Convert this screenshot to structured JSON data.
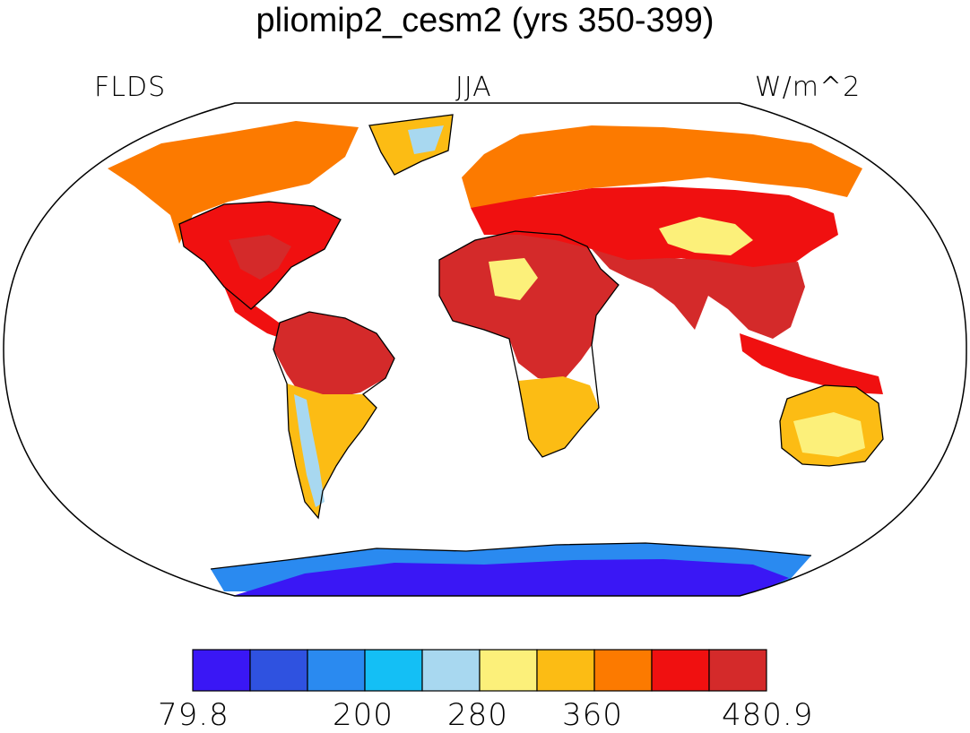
{
  "title": "pliomip2_cesm2 (yrs 350-399)",
  "variable": "FLDS",
  "season": "JJA",
  "units": "W/m^2",
  "colorbar": {
    "colors": [
      "#3a17f5",
      "#2f52e0",
      "#2a8af0",
      "#14bff5",
      "#a8d8f0",
      "#fcf07a",
      "#fcbc14",
      "#fc7a00",
      "#f01010",
      "#d42a2a"
    ],
    "tick_labels": [
      "79.8",
      "200",
      "280",
      "360",
      "480.9"
    ]
  },
  "regions": [
    {
      "name": "north-america-arctic",
      "level": 7
    },
    {
      "name": "north-america-east",
      "level": 8
    },
    {
      "name": "north-america-southeast",
      "level": 9
    },
    {
      "name": "greenland",
      "level": 6
    },
    {
      "name": "greenland-interior",
      "level": 4
    },
    {
      "name": "central-america",
      "level": 8
    },
    {
      "name": "south-america-north",
      "level": 9
    },
    {
      "name": "south-america-south",
      "level": 6
    },
    {
      "name": "andes",
      "level": 4
    },
    {
      "name": "africa-sahara",
      "level": 9
    },
    {
      "name": "africa-sahara-center",
      "level": 5
    },
    {
      "name": "africa-south",
      "level": 6
    },
    {
      "name": "eurasia-north",
      "level": 7
    },
    {
      "name": "eurasia-mid",
      "level": 8
    },
    {
      "name": "tibet",
      "level": 5
    },
    {
      "name": "south-asia",
      "level": 9
    },
    {
      "name": "maritime-continent",
      "level": 8
    },
    {
      "name": "australia-north",
      "level": 6
    },
    {
      "name": "australia-interior",
      "level": 5
    },
    {
      "name": "antarctica",
      "level": 0
    },
    {
      "name": "antarctica-coast",
      "level": 2
    }
  ]
}
